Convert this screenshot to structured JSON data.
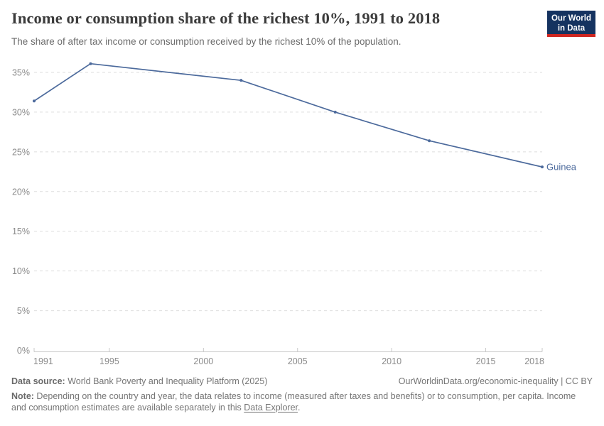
{
  "header": {
    "title": "Income or consumption share of the richest 10%, 1991 to 2018",
    "subtitle": "The share of after tax income or consumption received by the richest 10% of the population."
  },
  "logo": {
    "line1": "Our World",
    "line2": "in Data",
    "bg_color": "#153360",
    "accent_color": "#cf2620"
  },
  "chart_data": {
    "type": "line",
    "title": "Income or consumption share of the richest 10%, 1991 to 2018",
    "x": [
      1991,
      1994,
      2002,
      2007,
      2012,
      2018
    ],
    "series": [
      {
        "name": "Guinea",
        "color": "#4c6a9c",
        "values": [
          31.4,
          36.1,
          34.0,
          30.0,
          26.4,
          23.1
        ]
      }
    ],
    "xlabel": "",
    "ylabel": "",
    "xlim": [
      1991,
      2018
    ],
    "ylim": [
      0,
      35
    ],
    "xticks": [
      1991,
      1995,
      2000,
      2005,
      2010,
      2015,
      2018
    ],
    "yticks": [
      0,
      5,
      10,
      15,
      20,
      25,
      30,
      35
    ],
    "ytick_suffix": "%",
    "grid": true,
    "grid_style": "dashed",
    "legend_position": "end-of-line-label"
  },
  "footer": {
    "source_label": "Data source:",
    "source_text": " World Bank Poverty and Inequality Platform (2025)",
    "attribution": "OurWorldinData.org/economic-inequality",
    "license": " | CC BY",
    "note_label": "Note:",
    "note_before_link": " Depending on the country and year, the data relates to income (measured after taxes and benefits) or to consumption, per capita. Income and consumption estimates are available separately in this ",
    "note_link": "Data Explorer",
    "note_after_link": "."
  },
  "colors": {
    "line": "#4c6a9c",
    "grid": "#dedede",
    "axis": "#c9c9c9",
    "tick_label": "#8a8a8a",
    "title": "#3b3b3b",
    "subtitle": "#6c6c6c",
    "footer": "#757575"
  }
}
